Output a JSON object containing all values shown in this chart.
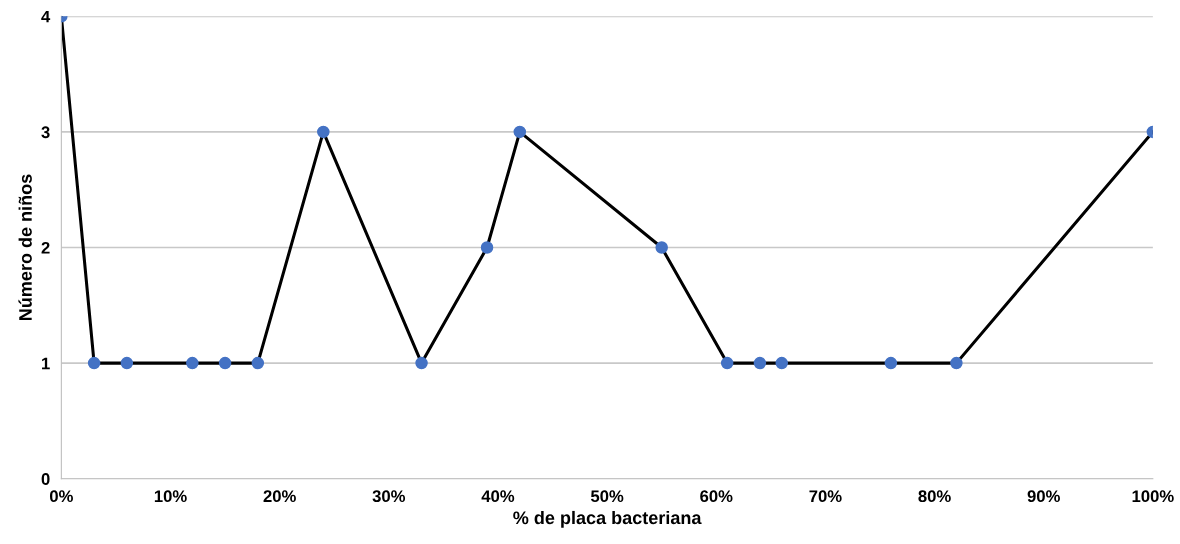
{
  "chart_data": {
    "type": "line",
    "xlabel": "% de placa bacteriana",
    "ylabel": "Número de niños",
    "x": [
      0,
      3,
      6,
      12,
      15,
      18,
      24,
      33,
      39,
      42,
      55,
      61,
      64,
      66,
      76,
      82,
      100
    ],
    "series": [
      {
        "color": "#4472c4",
        "values": [
          4,
          1,
          1,
          1,
          1,
          1,
          3,
          1,
          2,
          3,
          2,
          1,
          1,
          1,
          1,
          1,
          3
        ]
      }
    ],
    "xlim": [
      0,
      100
    ],
    "xticks": [
      {
        "value": 0,
        "label": "0%"
      },
      {
        "value": 10,
        "label": "10%"
      },
      {
        "value": 20,
        "label": "20%"
      },
      {
        "value": 30,
        "label": "30%"
      },
      {
        "value": 40,
        "label": "40%"
      },
      {
        "value": 50,
        "label": "50%"
      },
      {
        "value": 60,
        "label": "60%"
      },
      {
        "value": 70,
        "label": "70%"
      },
      {
        "value": 80,
        "label": "80%"
      },
      {
        "value": 90,
        "label": "90%"
      },
      {
        "value": 100,
        "label": "100%"
      }
    ],
    "ylim": [
      0,
      4
    ],
    "yticks": [
      0,
      1,
      2,
      3,
      4
    ],
    "grid": "y",
    "marker": "circle",
    "line_style": "solid"
  }
}
